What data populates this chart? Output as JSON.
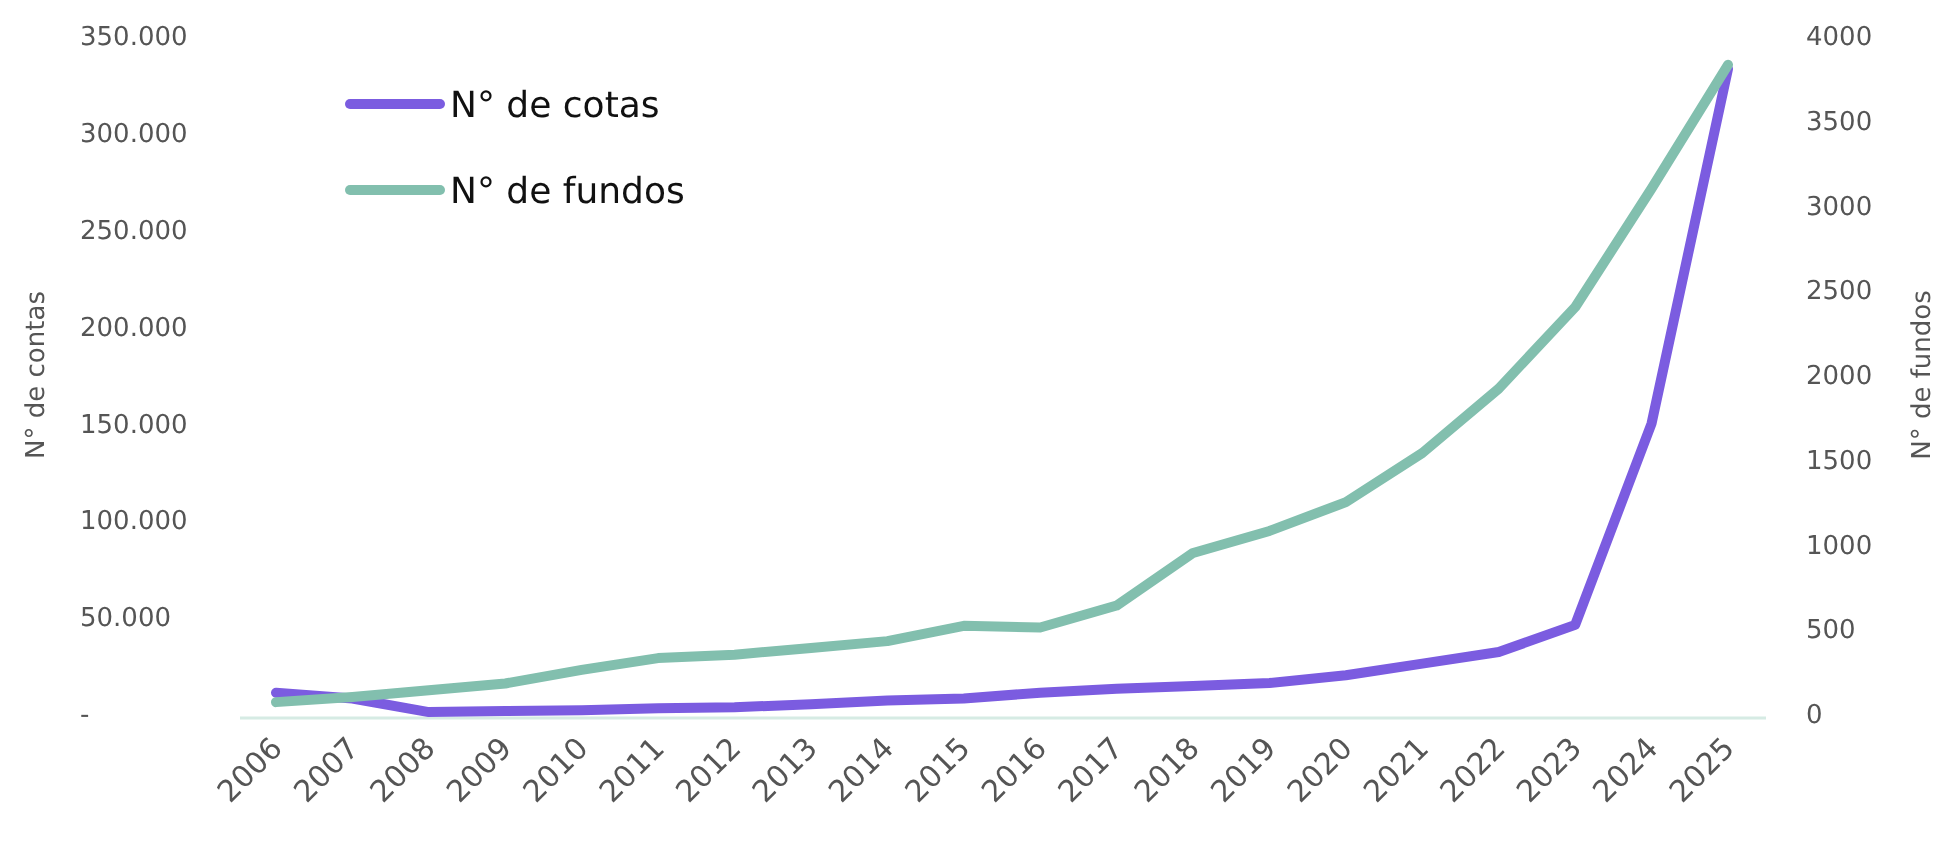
{
  "chart_data": {
    "type": "line",
    "categories": [
      "2006",
      "2007",
      "2008",
      "2009",
      "2010",
      "2011",
      "2012",
      "2013",
      "2014",
      "2015",
      "2016",
      "2017",
      "2018",
      "2019",
      "2020",
      "2021",
      "2022",
      "2023",
      "2024",
      "2025"
    ],
    "series": [
      {
        "name": "N° de cotas",
        "color": "#7b5ce0",
        "values": [
          11000,
          8000,
          1000,
          1500,
          2000,
          3000,
          3500,
          5000,
          7000,
          8000,
          11000,
          13000,
          14500,
          16000,
          20000,
          26000,
          32000,
          46000,
          150000,
          333000
        ]
      },
      {
        "name": "N° de fundos",
        "color": "#82bfae",
        "axis": "y2",
        "values": [
          70,
          100,
          140,
          180,
          260,
          330,
          350,
          390,
          430,
          520,
          510,
          640,
          950,
          1080,
          1250,
          1540,
          1920,
          2400,
          3100,
          3830
        ]
      }
    ],
    "ylabel": "N° de contas",
    "y2label": "N° de fundos",
    "ylim": [
      0,
      350000
    ],
    "yticks": [
      {
        "value": 0,
        "label": "-"
      },
      {
        "value": 50000,
        "label": "50.000"
      },
      {
        "value": 100000,
        "label": "100.000"
      },
      {
        "value": 150000,
        "label": "150.000"
      },
      {
        "value": 200000,
        "label": "200.000"
      },
      {
        "value": 250000,
        "label": "250.000"
      },
      {
        "value": 300000,
        "label": "300.000"
      },
      {
        "value": 350000,
        "label": "350.000"
      }
    ],
    "y2lim": [
      0,
      4000
    ],
    "y2ticks": [
      0,
      500,
      1000,
      1500,
      2000,
      2500,
      3000,
      3500,
      4000
    ],
    "legend": "top left",
    "grid": false,
    "marker": "none",
    "line_style": "solid"
  }
}
